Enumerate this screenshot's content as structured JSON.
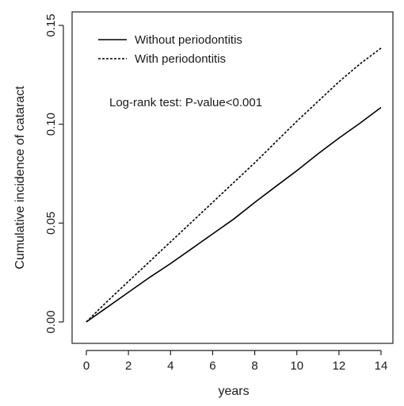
{
  "chart_data": {
    "type": "line",
    "xlabel": "years",
    "ylabel": "Cumulative incidence of cataract",
    "xlim": [
      0,
      14
    ],
    "ylim": [
      0,
      0.15
    ],
    "xticks": [
      0,
      2,
      4,
      6,
      8,
      10,
      12,
      14
    ],
    "xtick_labels": [
      "0",
      "2",
      "4",
      "6",
      "8",
      "10",
      "12",
      "14"
    ],
    "yticks": [
      0.0,
      0.05,
      0.1,
      0.15
    ],
    "ytick_labels": [
      "0.00",
      "0.05",
      "0.10",
      "0.15"
    ],
    "grid": false,
    "legend_position": "top-left",
    "annotation": "Log-rank test: P-value<0.001",
    "series": [
      {
        "name": "Without periodontitis",
        "linestyle": "solid",
        "color": "#000000",
        "x": [
          0,
          1,
          2,
          3,
          4,
          5,
          6,
          7,
          8,
          9,
          10,
          11,
          12,
          13,
          14
        ],
        "y": [
          0.0,
          0.0075,
          0.015,
          0.0225,
          0.0295,
          0.037,
          0.0445,
          0.052,
          0.0605,
          0.0685,
          0.0765,
          0.085,
          0.093,
          0.1005,
          0.1085
        ]
      },
      {
        "name": "With periodontitis",
        "linestyle": "dashed",
        "color": "#000000",
        "x": [
          0,
          1,
          2,
          3,
          4,
          5,
          6,
          7,
          8,
          9,
          10,
          11,
          12,
          13,
          14
        ],
        "y": [
          0.0,
          0.0105,
          0.0205,
          0.0305,
          0.0405,
          0.0505,
          0.0605,
          0.0705,
          0.0805,
          0.091,
          0.1015,
          0.1115,
          0.1215,
          0.1305,
          0.1385
        ]
      }
    ]
  }
}
